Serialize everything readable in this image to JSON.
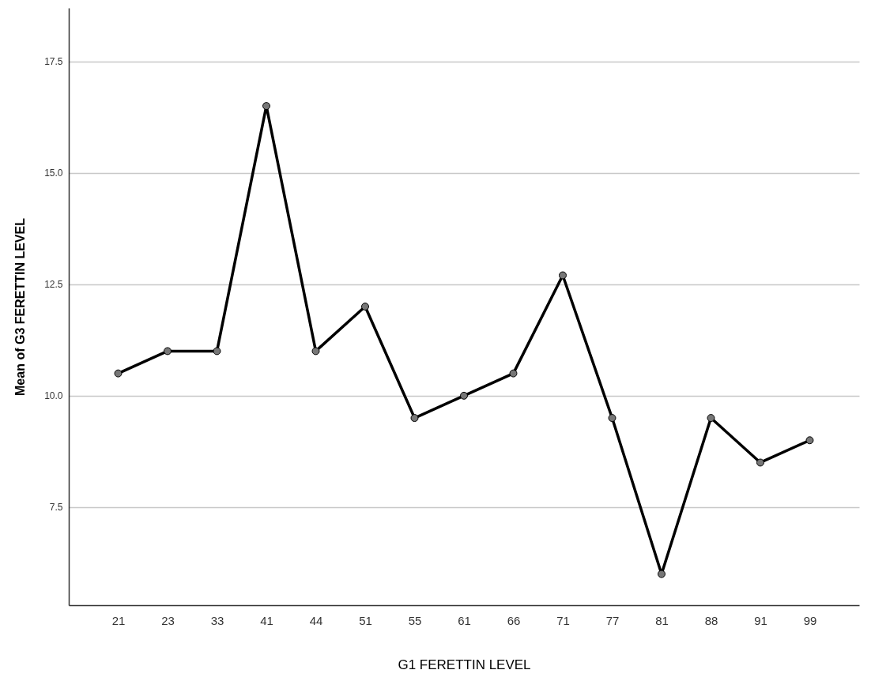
{
  "chart_data": {
    "type": "line",
    "xlabel": "G1 FERETTIN LEVEL",
    "ylabel": "Mean of G3 FERETTIN LEVEL",
    "categories": [
      "21",
      "23",
      "33",
      "41",
      "44",
      "51",
      "55",
      "61",
      "66",
      "71",
      "77",
      "81",
      "88",
      "91",
      "99"
    ],
    "values": [
      10.5,
      11.0,
      11.0,
      16.5,
      11.0,
      12.0,
      9.5,
      10.0,
      10.5,
      12.7,
      9.5,
      6.0,
      9.5,
      8.5,
      9.0
    ],
    "color": "#000000",
    "marker": "circle",
    "line_style": "solid",
    "grid": "y",
    "ylim": [
      5.3,
      18.7
    ],
    "yticks": [
      {
        "value": 7.5,
        "label": "7.5"
      },
      {
        "value": 10,
        "label": "10.0"
      },
      {
        "value": 12.5,
        "label": "12.5"
      },
      {
        "value": 15,
        "label": "15.0"
      },
      {
        "value": 17.5,
        "label": "17.5"
      }
    ]
  }
}
